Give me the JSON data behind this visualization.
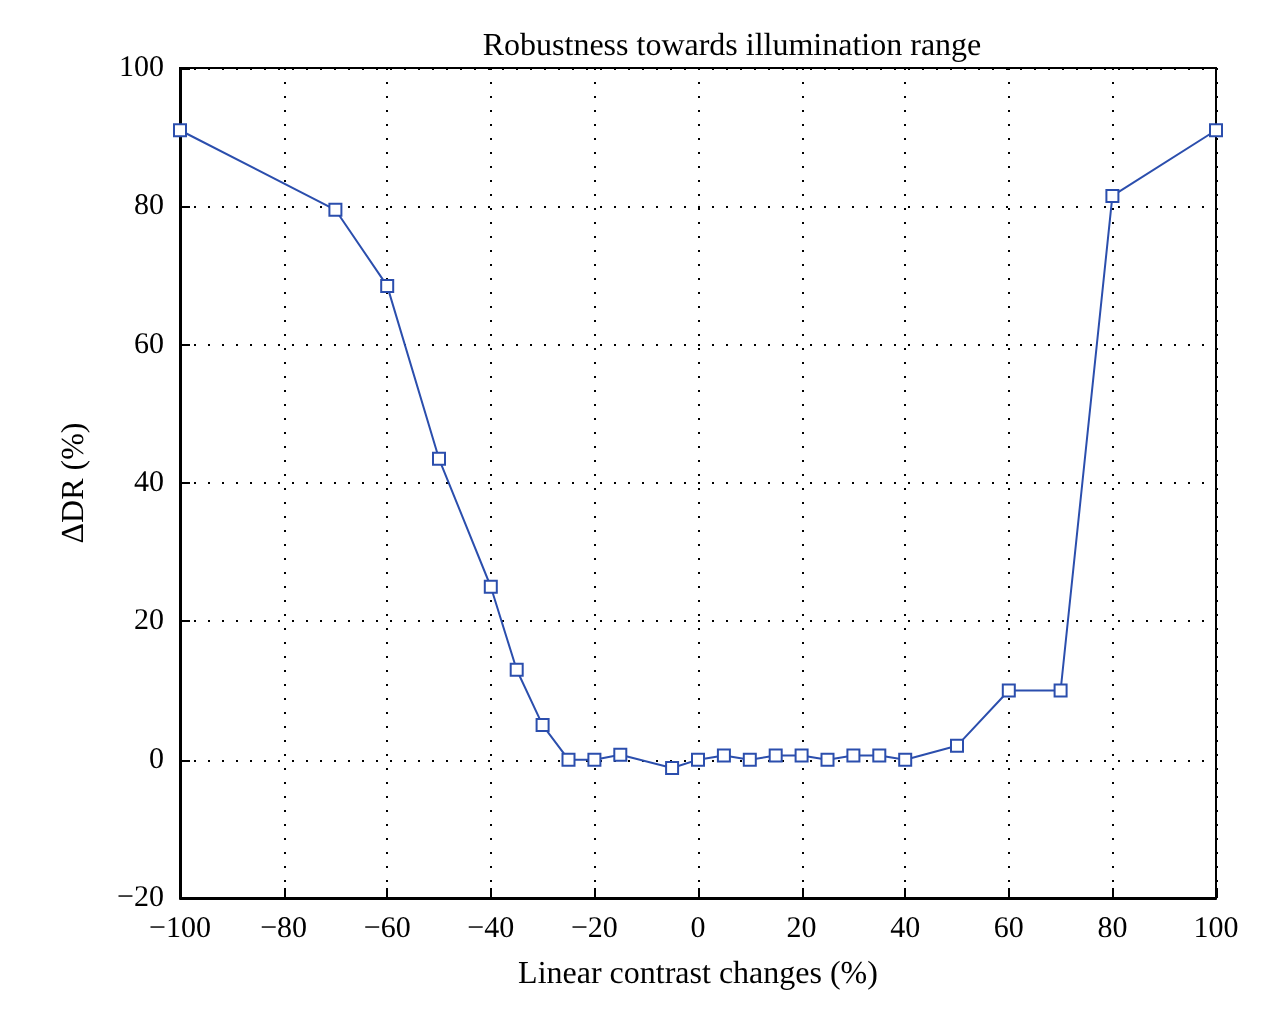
{
  "chart_data": {
    "type": "line",
    "title": "Robustness towards illumination range",
    "xlabel": "Linear contrast changes (%)",
    "ylabel": "ΔDR (%)",
    "x": [
      -100,
      -70,
      -60,
      -50,
      -40,
      -35,
      -30,
      -25,
      -20,
      -15,
      -5,
      0,
      5,
      10,
      15,
      20,
      25,
      30,
      35,
      40,
      50,
      60,
      70,
      80,
      100
    ],
    "series": [
      {
        "color": "#2b4ead",
        "values": [
          91,
          79.5,
          68.5,
          43.5,
          25,
          13,
          5,
          0,
          0,
          0.7,
          -1.2,
          0,
          0.6,
          0,
          0.6,
          0.6,
          0,
          0.6,
          0.6,
          0,
          2,
          10,
          10,
          81.5,
          91
        ]
      }
    ],
    "xlim": [
      -100,
      100
    ],
    "xticks": [
      -100,
      -80,
      -60,
      -40,
      -20,
      0,
      20,
      40,
      60,
      80,
      100
    ],
    "ylim": [
      -20,
      100
    ],
    "yticks": [
      -20,
      0,
      20,
      40,
      60,
      80,
      100
    ],
    "grid": true,
    "marker": "square",
    "line_style": "solid"
  }
}
